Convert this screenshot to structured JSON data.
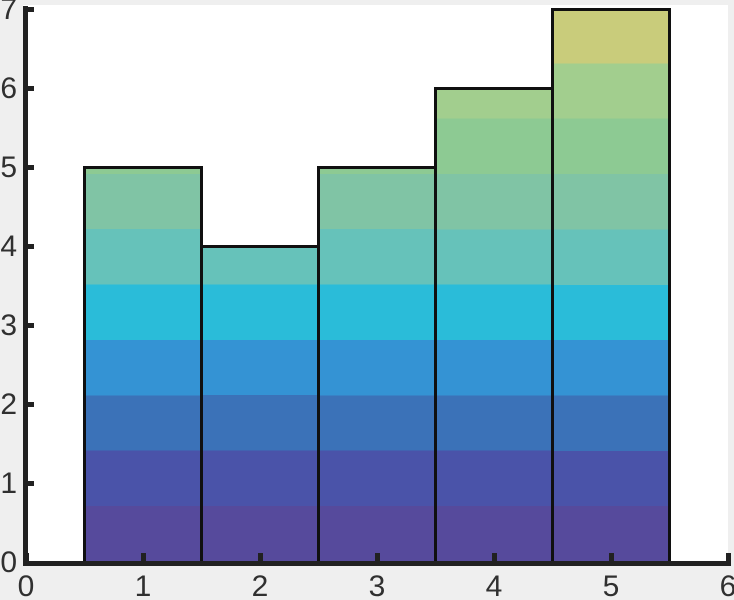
{
  "figure": {
    "background_color": "#efefef",
    "plot_background_color": "#ffffff",
    "axis_color": "#212121",
    "tick_label_color": "#303030",
    "bar_edge_color": "#101010"
  },
  "chart_data": {
    "type": "bar",
    "subtype": "histogram-style bars, width 1, edges touching",
    "title": "",
    "xlabel": "",
    "ylabel": "",
    "grid": false,
    "legend": null,
    "categories": [
      1,
      2,
      3,
      4,
      5
    ],
    "values": [
      5,
      4,
      5,
      6,
      7
    ],
    "bar_width": 1,
    "xlim": [
      0,
      6
    ],
    "ylim": [
      0,
      7
    ],
    "x_ticks": [
      0,
      1,
      2,
      3,
      4,
      5,
      6
    ],
    "x_tick_labels": [
      "0",
      "1",
      "2",
      "3",
      "4",
      "5",
      "6"
    ],
    "y_ticks": [
      0,
      1,
      2,
      3,
      4,
      5,
      6,
      7
    ],
    "y_tick_labels": [
      "0",
      "1",
      "2",
      "3",
      "4",
      "5",
      "6",
      "7"
    ],
    "fill_style": {
      "description": "vertical colormap fill quantized into 10 horizontal bands aligned to the y-axis across all bars",
      "band_height_data_units": 0.7,
      "band_colors_bottom_to_top": [
        "#564a9c",
        "#4a53a9",
        "#3b72b8",
        "#3493d4",
        "#2abcd9",
        "#66c2ba",
        "#80c4a5",
        "#8dca93",
        "#a2ce8e",
        "#c9cc7b"
      ]
    }
  }
}
